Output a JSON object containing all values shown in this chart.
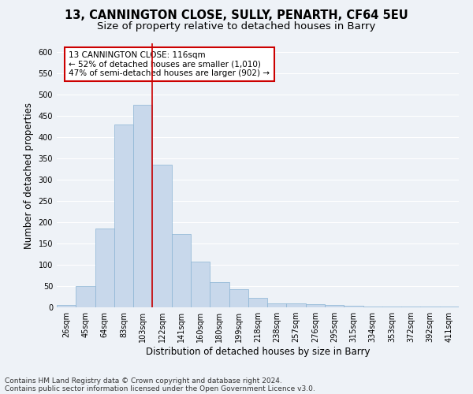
{
  "title_line1": "13, CANNINGTON CLOSE, SULLY, PENARTH, CF64 5EU",
  "title_line2": "Size of property relative to detached houses in Barry",
  "xlabel": "Distribution of detached houses by size in Barry",
  "ylabel": "Number of detached properties",
  "categories": [
    "26sqm",
    "45sqm",
    "64sqm",
    "83sqm",
    "103sqm",
    "122sqm",
    "141sqm",
    "160sqm",
    "180sqm",
    "199sqm",
    "218sqm",
    "238sqm",
    "257sqm",
    "276sqm",
    "295sqm",
    "315sqm",
    "334sqm",
    "353sqm",
    "372sqm",
    "392sqm",
    "411sqm"
  ],
  "values": [
    5,
    50,
    185,
    430,
    475,
    335,
    172,
    107,
    60,
    43,
    22,
    10,
    10,
    8,
    5,
    3,
    2,
    2,
    1,
    2,
    1
  ],
  "bar_color": "#c8d8eb",
  "bar_edge_color": "#8ab4d4",
  "vline_color": "#cc0000",
  "vline_x": 5.0,
  "annotation_text": "13 CANNINGTON CLOSE: 116sqm\n← 52% of detached houses are smaller (1,010)\n47% of semi-detached houses are larger (902) →",
  "annotation_box_color": "#ffffff",
  "annotation_box_edge": "#cc0000",
  "ylim": [
    0,
    620
  ],
  "yticks": [
    0,
    50,
    100,
    150,
    200,
    250,
    300,
    350,
    400,
    450,
    500,
    550,
    600
  ],
  "footnote_line1": "Contains HM Land Registry data © Crown copyright and database right 2024.",
  "footnote_line2": "Contains public sector information licensed under the Open Government Licence v3.0.",
  "bg_color": "#eef2f7",
  "grid_color": "#ffffff",
  "title_fontsize": 10.5,
  "subtitle_fontsize": 9.5,
  "axis_label_fontsize": 8.5,
  "tick_fontsize": 7,
  "annotation_fontsize": 7.5,
  "footnote_fontsize": 6.5
}
